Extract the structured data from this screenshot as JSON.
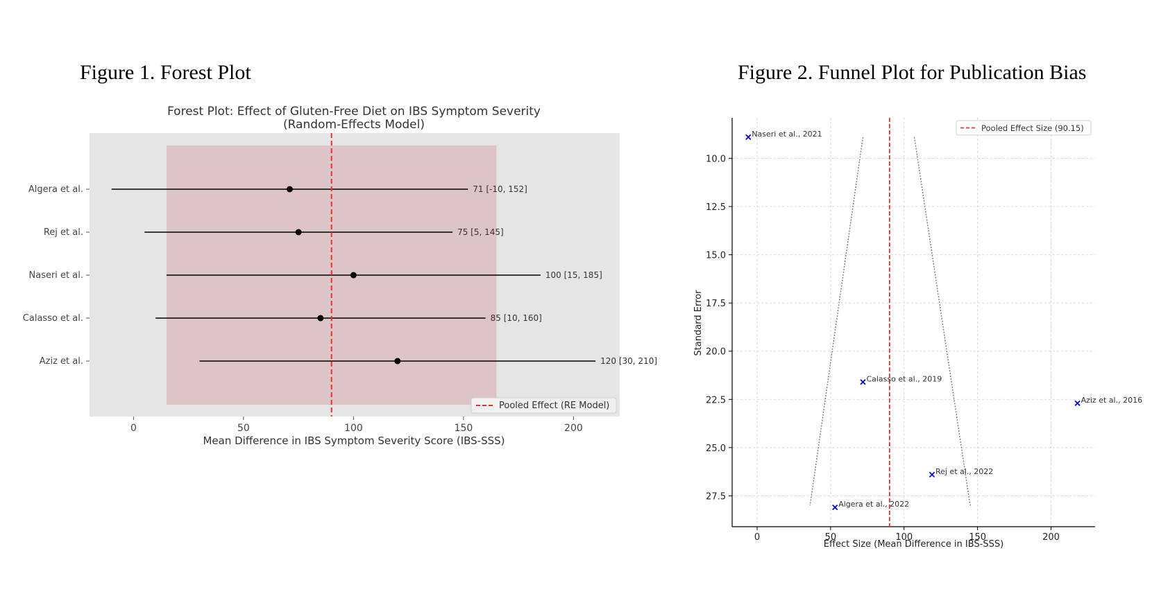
{
  "figure1": {
    "heading": "Figure 1. Forest Plot"
  },
  "figure2": {
    "heading": "Figure 2. Funnel Plot for Publication Bias"
  },
  "chart_data": [
    {
      "type": "forest",
      "title": "Forest Plot: Effect of Gluten-Free Diet on IBS Symptom Severity",
      "subtitle": "(Random-Effects Model)",
      "xlabel": "Mean Difference in IBS Symptom Severity Score (IBS-SSS)",
      "ylabel": "",
      "xlim": [
        -20,
        221
      ],
      "xticks": [
        0,
        50,
        100,
        150,
        200
      ],
      "grid": false,
      "legend": {
        "position": "bottom-right",
        "entries": [
          "Pooled Effect (RE Model)"
        ]
      },
      "pooled_effect": 90,
      "pooled_ci_band": [
        15,
        165
      ],
      "colors": {
        "background": "#e5e5e5",
        "band": "#ddc5c7",
        "pooled_line": "#e8322f",
        "points": "#000000"
      },
      "studies": [
        {
          "name": "Algera et al.",
          "effect": 71,
          "lower": -10,
          "upper": 152,
          "label": "71 [-10, 152]"
        },
        {
          "name": "Rej et al.",
          "effect": 75,
          "lower": 5,
          "upper": 145,
          "label": "75 [5, 145]"
        },
        {
          "name": "Naseri et al.",
          "effect": 100,
          "lower": 15,
          "upper": 185,
          "label": "100 [15, 185]"
        },
        {
          "name": "Calasso et al.",
          "effect": 85,
          "lower": 10,
          "upper": 160,
          "label": "85 [10, 160]"
        },
        {
          "name": "Aziz et al.",
          "effect": 120,
          "lower": 30,
          "upper": 210,
          "label": "120 [30, 210]"
        }
      ]
    },
    {
      "type": "scatter",
      "title": "",
      "xlabel": "Effect Size (Mean Difference in IBS-SSS)",
      "ylabel": "Standard Error",
      "xlim": [
        -17,
        230
      ],
      "ylim": [
        29.1,
        7.9
      ],
      "y_inverted": true,
      "xticks": [
        0,
        50,
        100,
        150,
        200
      ],
      "yticks": [
        10.0,
        12.5,
        15.0,
        17.5,
        20.0,
        22.5,
        25.0,
        27.5
      ],
      "ytick_labels": [
        "10.0",
        "12.5",
        "15.0",
        "17.5",
        "20.0",
        "22.5",
        "25.0",
        "27.5"
      ],
      "grid": true,
      "legend": {
        "position": "top-right",
        "entries": [
          "Pooled Effect Size (90.15)"
        ]
      },
      "pooled_effect": 90.15,
      "funnel_lines": [
        {
          "x": [
            72,
            36
          ],
          "y": [
            8.9,
            28.0
          ]
        },
        {
          "x": [
            107,
            145
          ],
          "y": [
            8.9,
            28.0
          ]
        }
      ],
      "colors": {
        "points": "#0000cc",
        "pooled_line": "#e8322f",
        "funnel": "#808080"
      },
      "points": [
        {
          "label": "Naseri et al., 2021",
          "x": -6,
          "y": 8.9
        },
        {
          "label": "Calasso et al., 2019",
          "x": 72,
          "y": 21.6
        },
        {
          "label": "Aziz et al., 2016",
          "x": 218,
          "y": 22.7
        },
        {
          "label": "Rej et al., 2022",
          "x": 119,
          "y": 26.4
        },
        {
          "label": "Algera et al., 2022",
          "x": 53,
          "y": 28.1
        }
      ]
    }
  ]
}
